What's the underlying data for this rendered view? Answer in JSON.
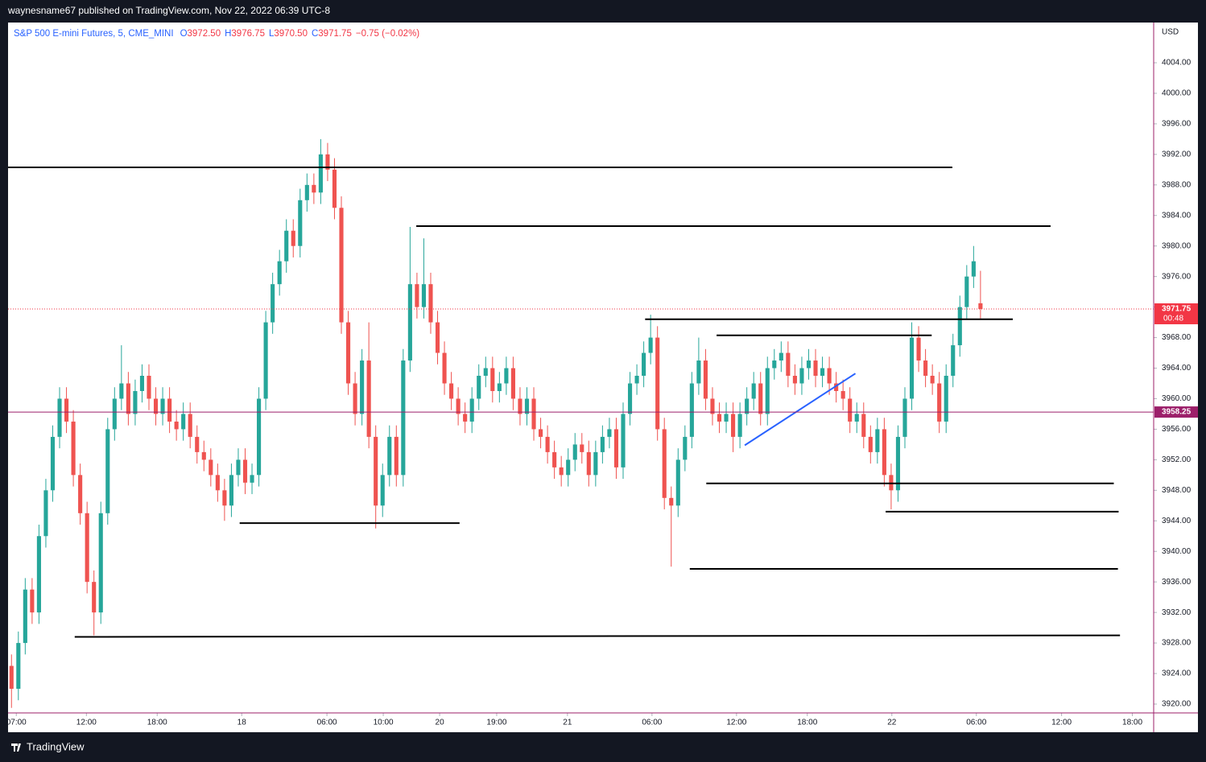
{
  "header": {
    "published": "waynesname67 published on TradingView.com, Nov 22, 2022 06:39 UTC-8"
  },
  "footer": {
    "brand": "TradingView"
  },
  "chart_data": {
    "type": "candlestick",
    "title": "S&P 500 E-mini Futures, 5, CME_MINI",
    "title_color": "#2962ff",
    "ohlc_legend": [
      {
        "key": "O",
        "value": "3972.50"
      },
      {
        "key": "H",
        "value": "3976.75"
      },
      {
        "key": "L",
        "value": "3970.50"
      },
      {
        "key": "C",
        "value": "3971.75"
      }
    ],
    "change": "−0.75 (−0.02%)",
    "legend_key_color": "#2962ff",
    "legend_value_color": "#f23645",
    "currency": "USD",
    "up_color": "#26a69a",
    "down_color": "#ef5350",
    "open": [
      3925,
      3922,
      3928,
      3935,
      3932,
      3942,
      3948,
      3955,
      3960,
      3957,
      3950,
      3945,
      3936,
      3932,
      3945,
      3956,
      3960,
      3962,
      3958,
      3961,
      3963,
      3960,
      3958,
      3960,
      3957,
      3956,
      3958,
      3955,
      3953,
      3952,
      3950,
      3948,
      3946,
      3950,
      3952,
      3949,
      3950,
      3960,
      3970,
      3975,
      3978,
      3982,
      3980,
      3986,
      3988,
      3987,
      3992,
      3990,
      3985,
      3970,
      3962,
      3958,
      3965,
      3955,
      3946,
      3950,
      3955,
      3950,
      3965,
      3975,
      3972,
      3975,
      3970,
      3966,
      3962,
      3960,
      3958,
      3957,
      3960,
      3963,
      3964,
      3961,
      3962,
      3964,
      3960,
      3958,
      3960,
      3956,
      3955,
      3953,
      3951,
      3950,
      3952,
      3954,
      3953,
      3950,
      3953,
      3955,
      3956,
      3951,
      3958,
      3962,
      3963,
      3966,
      3968,
      3956,
      3947,
      3946,
      3952,
      3955,
      3962,
      3965,
      3960,
      3958,
      3957,
      3958,
      3955,
      3958,
      3960,
      3962,
      3958,
      3964,
      3965,
      3966,
      3963,
      3962,
      3964,
      3965,
      3963,
      3964,
      3962,
      3961,
      3960,
      3957,
      3958,
      3955,
      3953,
      3956,
      3950,
      3948,
      3955,
      3960,
      3968,
      3965,
      3963,
      3962,
      3957,
      3963,
      3967,
      3972,
      3976,
      3972.5
    ],
    "high": [
      3926.5,
      3929.5,
      3936.5,
      3936.5,
      3943.5,
      3949.5,
      3956.5,
      3961.5,
      3961.5,
      3958.5,
      3951.5,
      3946.5,
      3937.5,
      3946.5,
      3957.5,
      3961.5,
      3967,
      3963.5,
      3962.5,
      3964.5,
      3964.5,
      3961.5,
      3961.5,
      3961.5,
      3958.5,
      3959.5,
      3959.5,
      3956.5,
      3954.5,
      3953.5,
      3951.5,
      3949.5,
      3951.5,
      3953.5,
      3953.5,
      3951.5,
      3961.5,
      3971.5,
      3976.5,
      3979.5,
      3983.5,
      3983.5,
      3987.5,
      3989.5,
      3989.5,
      3994,
      3993.5,
      3991.5,
      3986.5,
      3971.5,
      3963.5,
      3966.5,
      3970,
      3956.5,
      3951.5,
      3956.5,
      3956.5,
      3966.5,
      3982.5,
      3976.5,
      3981,
      3976.5,
      3971.5,
      3967.5,
      3963.5,
      3961.5,
      3959.5,
      3961.5,
      3964.5,
      3965.5,
      3965.5,
      3963.5,
      3965.5,
      3965.5,
      3961.5,
      3961.5,
      3961.5,
      3957.5,
      3956.5,
      3954.5,
      3952.5,
      3953.5,
      3955.5,
      3955.5,
      3954.5,
      3954.5,
      3956.5,
      3957.5,
      3957.5,
      3959.5,
      3963.5,
      3964.5,
      3967.5,
      3971,
      3969.5,
      3957.5,
      3948.5,
      3953.5,
      3956.5,
      3963.5,
      3968,
      3966.5,
      3961.5,
      3959.5,
      3959.5,
      3959.5,
      3959.5,
      3961.5,
      3963.5,
      3963.5,
      3965.5,
      3966.5,
      3967.5,
      3967.5,
      3964.5,
      3965.5,
      3966.5,
      3966.5,
      3965.5,
      3965.5,
      3963.5,
      3962.5,
      3961.5,
      3959.5,
      3959.5,
      3956.5,
      3957.5,
      3957.5,
      3951.5,
      3956.5,
      3961.5,
      3970,
      3969.5,
      3966.5,
      3964.5,
      3963.5,
      3964.5,
      3968.5,
      3973.5,
      3977.5,
      3980,
      3976.75
    ],
    "low": [
      3919.5,
      3920.5,
      3926.5,
      3930.5,
      3930.5,
      3940.5,
      3946.5,
      3953.5,
      3955.5,
      3948.5,
      3943.5,
      3934.5,
      3929,
      3930.5,
      3943.5,
      3954.5,
      3958.5,
      3956.5,
      3956.5,
      3959.5,
      3958.5,
      3956.5,
      3956.5,
      3955.5,
      3954.5,
      3954.5,
      3953.5,
      3951.5,
      3950.5,
      3948.5,
      3946.5,
      3944,
      3944.5,
      3948.5,
      3947.5,
      3947.5,
      3948.5,
      3958.5,
      3968.5,
      3973.5,
      3976.5,
      3978.5,
      3978.5,
      3984.5,
      3985.5,
      3985.5,
      3988.5,
      3983.5,
      3968.5,
      3960.5,
      3956.5,
      3956.5,
      3953.5,
      3943,
      3944.5,
      3948.5,
      3948.5,
      3948.5,
      3963.5,
      3970.5,
      3970.5,
      3968.5,
      3964.5,
      3960.5,
      3958.5,
      3956.5,
      3955.5,
      3955.5,
      3958.5,
      3961.5,
      3959.5,
      3959.5,
      3960.5,
      3958.5,
      3956.5,
      3956.5,
      3954.5,
      3953.5,
      3951.5,
      3949.5,
      3948.5,
      3948.5,
      3950.5,
      3951.5,
      3948.5,
      3948.5,
      3951.5,
      3953.5,
      3949.5,
      3949.5,
      3956.5,
      3960.5,
      3961.5,
      3964.5,
      3954.5,
      3945.5,
      3938,
      3944.5,
      3950.5,
      3953.5,
      3960.5,
      3958.5,
      3956.5,
      3955.5,
      3955.5,
      3953,
      3953.5,
      3956.5,
      3958.5,
      3956.5,
      3956.5,
      3962.5,
      3963.5,
      3961.5,
      3960.5,
      3960.5,
      3962.5,
      3961.5,
      3961.5,
      3960.5,
      3959.5,
      3958.5,
      3955.5,
      3955.5,
      3953.5,
      3951.5,
      3951.5,
      3948.5,
      3945.5,
      3946.5,
      3953.5,
      3958.5,
      3963.5,
      3961.5,
      3960.5,
      3955.5,
      3955.5,
      3961.5,
      3965.5,
      3970.5,
      3974.5,
      3970.5
    ],
    "close": [
      3922,
      3928,
      3935,
      3932,
      3942,
      3948,
      3955,
      3960,
      3957,
      3950,
      3945,
      3936,
      3932,
      3945,
      3956,
      3960,
      3962,
      3958,
      3961,
      3963,
      3960,
      3958,
      3960,
      3957,
      3956,
      3958,
      3955,
      3953,
      3952,
      3950,
      3948,
      3946,
      3950,
      3952,
      3949,
      3950,
      3960,
      3970,
      3975,
      3978,
      3982,
      3980,
      3986,
      3988,
      3987,
      3992,
      3990,
      3985,
      3970,
      3962,
      3958,
      3965,
      3955,
      3946,
      3950,
      3955,
      3950,
      3965,
      3975,
      3972,
      3975,
      3970,
      3966,
      3962,
      3960,
      3958,
      3957,
      3960,
      3963,
      3964,
      3961,
      3962,
      3964,
      3960,
      3958,
      3960,
      3956,
      3955,
      3953,
      3951,
      3950,
      3952,
      3954,
      3953,
      3950,
      3953,
      3955,
      3956,
      3951,
      3958,
      3962,
      3963,
      3966,
      3968,
      3956,
      3947,
      3946,
      3952,
      3955,
      3962,
      3965,
      3960,
      3958,
      3957,
      3958,
      3955,
      3958,
      3960,
      3962,
      3958,
      3964,
      3965,
      3966,
      3963,
      3962,
      3964,
      3965,
      3963,
      3964,
      3962,
      3961,
      3960,
      3957,
      3958,
      3955,
      3953,
      3956,
      3950,
      3948,
      3955,
      3960,
      3968,
      3965,
      3963,
      3962,
      3957,
      3963,
      3967,
      3972,
      3976,
      3978,
      3971.75
    ],
    "xlim": [
      -0.5,
      166.2
    ],
    "xticks": [
      {
        "value": 0.7,
        "label": "07:00"
      },
      {
        "value": 10.9,
        "label": "12:00"
      },
      {
        "value": 21.2,
        "label": "18:00"
      },
      {
        "value": 33.5,
        "label": "18"
      },
      {
        "value": 45.9,
        "label": "06:00"
      },
      {
        "value": 54.1,
        "label": "10:00"
      },
      {
        "value": 62.3,
        "label": "20"
      },
      {
        "value": 70.6,
        "label": "19:00"
      },
      {
        "value": 80.9,
        "label": "21"
      },
      {
        "value": 93.2,
        "label": "06:00"
      },
      {
        "value": 105.5,
        "label": "12:00"
      },
      {
        "value": 115.8,
        "label": "18:00"
      },
      {
        "value": 128.1,
        "label": "22"
      },
      {
        "value": 140.4,
        "label": "06:00"
      },
      {
        "value": 152.8,
        "label": "12:00"
      },
      {
        "value": 163.1,
        "label": "18:00"
      }
    ],
    "ylim": [
      3918.84,
      4009.27
    ],
    "yticks": [
      {
        "value": 3920,
        "label": "3920.00"
      },
      {
        "value": 3924,
        "label": "3924.00"
      },
      {
        "value": 3928,
        "label": "3928.00"
      },
      {
        "value": 3932,
        "label": "3932.00"
      },
      {
        "value": 3936,
        "label": "3936.00"
      },
      {
        "value": 3940,
        "label": "3940.00"
      },
      {
        "value": 3944,
        "label": "3944.00"
      },
      {
        "value": 3948,
        "label": "3948.00"
      },
      {
        "value": 3952,
        "label": "3952.00"
      },
      {
        "value": 3956,
        "label": "3956.00"
      },
      {
        "value": 3960,
        "label": "3960.00"
      },
      {
        "value": 3964,
        "label": "3964.00"
      },
      {
        "value": 3968,
        "label": "3968.00"
      },
      {
        "value": 3972,
        "label": "3972.00"
      },
      {
        "value": 3976,
        "label": "3976.00"
      },
      {
        "value": 3980,
        "label": "3980.00"
      },
      {
        "value": 3984,
        "label": "3984.00"
      },
      {
        "value": 3988,
        "label": "3988.00"
      },
      {
        "value": 3992,
        "label": "3992.00"
      },
      {
        "value": 3996,
        "label": "3996.00"
      },
      {
        "value": 4000,
        "label": "4000.00"
      },
      {
        "value": 4004,
        "label": "4004.00"
      }
    ],
    "last_price": {
      "value": 3971.75,
      "label": "3971.75",
      "countdown": "00:48",
      "color": "#f23645"
    },
    "crosshair": {
      "value": 3958.25,
      "label": "3958.25",
      "color": "#9c1f6a"
    },
    "drawings": [
      {
        "x": [
          -0.5,
          136.9
        ],
        "y": [
          3990.3,
          3990.3
        ],
        "color": "#000000"
      },
      {
        "x": [
          58.9,
          151.2
        ],
        "y": [
          3982.6,
          3982.6
        ],
        "color": "#000000"
      },
      {
        "x": [
          92.2,
          145.7
        ],
        "y": [
          3970.4,
          3970.4
        ],
        "color": "#000000"
      },
      {
        "x": [
          102.6,
          133.9
        ],
        "y": [
          3968.3,
          3968.3
        ],
        "color": "#000000"
      },
      {
        "x": [
          33.2,
          65.2
        ],
        "y": [
          3943.7,
          3943.7
        ],
        "color": "#000000"
      },
      {
        "x": [
          101.1,
          160.4
        ],
        "y": [
          3948.9,
          3948.9
        ],
        "color": "#000000"
      },
      {
        "x": [
          127.2,
          161.1
        ],
        "y": [
          3945.2,
          3945.2
        ],
        "color": "#000000"
      },
      {
        "x": [
          98.7,
          161
        ],
        "y": [
          3937.7,
          3937.7
        ],
        "color": "#000000"
      },
      {
        "x": [
          9.2,
          161.3
        ],
        "y": [
          3928.8,
          3929.0
        ],
        "color": "#000000"
      },
      {
        "x": [
          106.7,
          122.8
        ],
        "y": [
          3953.9,
          3963.3
        ],
        "color": "#2962ff"
      }
    ]
  }
}
